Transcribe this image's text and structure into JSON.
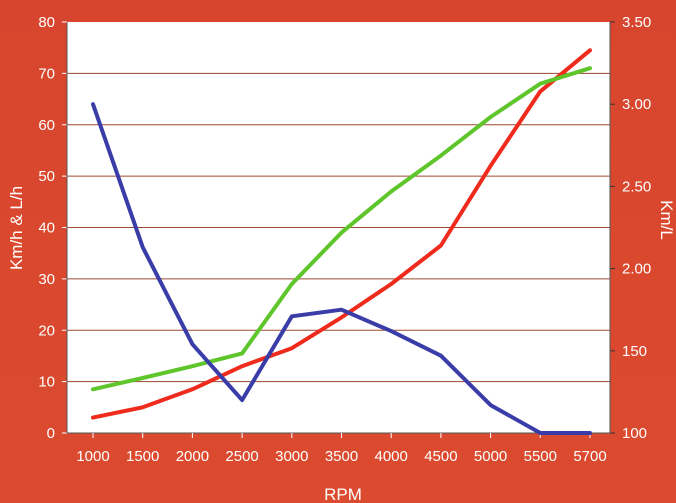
{
  "chart_data": {
    "type": "line",
    "title": "",
    "xlabel": "RPM",
    "ylabel_left": "Km/h & L/h",
    "ylabel_right": "Km/L",
    "categories": [
      "1000",
      "1500",
      "2000",
      "2500",
      "3000",
      "3500",
      "4000",
      "4500",
      "5000",
      "5500",
      "5700"
    ],
    "y_left": {
      "min": 0,
      "max": 80,
      "ticks": [
        "0",
        "10",
        "20",
        "30",
        "40",
        "50",
        "60",
        "70",
        "80"
      ]
    },
    "y_right": {
      "min": 1.0,
      "max": 3.5,
      "ticks": [
        "100",
        "150",
        "2.00",
        "2.50",
        "3.00",
        "3.50"
      ],
      "tick_values": [
        1.0,
        1.5,
        2.0,
        2.5,
        3.0,
        3.5
      ]
    },
    "grid": true,
    "legend": "none",
    "series": [
      {
        "axis": "left",
        "color": "#ee2b1c",
        "values": [
          3,
          5,
          8.5,
          13,
          16.5,
          22.5,
          29,
          36.5,
          52,
          66.5,
          74.5
        ]
      },
      {
        "axis": "left",
        "color": "#5ec52b",
        "values": [
          8.5,
          10.7,
          13,
          15.5,
          29,
          39,
          47,
          54,
          61.5,
          68,
          71
        ]
      },
      {
        "axis": "right",
        "color": "#3a3da8",
        "values": [
          3.0,
          2.13,
          1.54,
          1.2,
          1.71,
          1.75,
          1.62,
          1.47,
          1.17,
          1.0,
          0.96
        ]
      }
    ]
  }
}
